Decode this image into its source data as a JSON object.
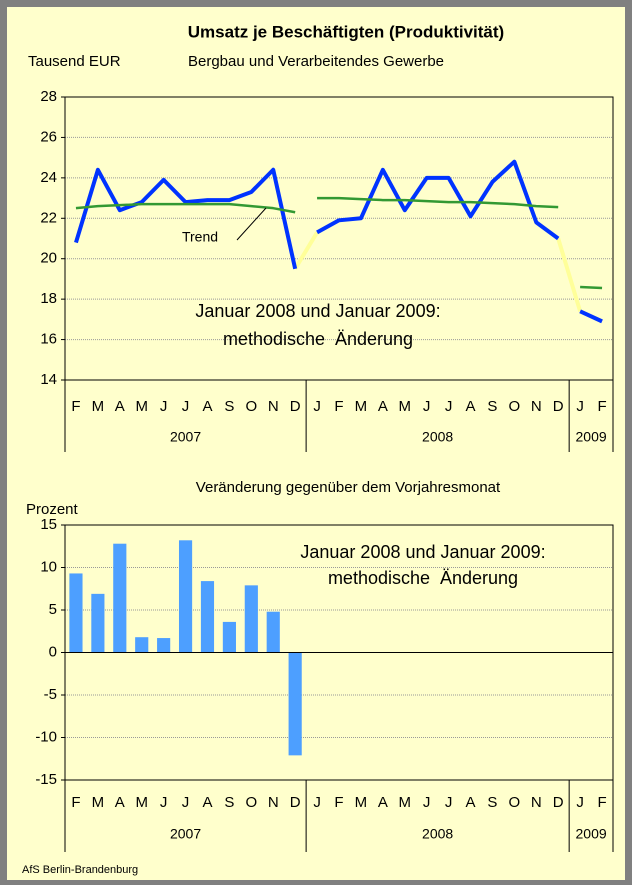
{
  "chart_data": [
    {
      "type": "line",
      "title": "Umsatz je Beschäftigten (Produktivität)",
      "y_label": "Tausend EUR",
      "subtitle": "Bergbau und Verarbeitendes Gewerbe",
      "groups": [
        {
          "label": "2007",
          "categories": [
            "F",
            "M",
            "A",
            "M",
            "J",
            "J",
            "A",
            "S",
            "O",
            "N",
            "D"
          ]
        },
        {
          "label": "2008",
          "categories": [
            "J",
            "F",
            "M",
            "A",
            "M",
            "J",
            "J",
            "A",
            "S",
            "O",
            "N",
            "D"
          ]
        },
        {
          "label": "2009",
          "categories": [
            "J",
            "F"
          ]
        }
      ],
      "series": [
        {
          "color": "#0033ff",
          "width": 4,
          "values": [
            20.8,
            24.4,
            22.4,
            22.8,
            23.9,
            22.8,
            22.9,
            22.9,
            23.3,
            24.4,
            19.5,
            21.3,
            21.9,
            22.0,
            24.4,
            22.4,
            24.0,
            24.0,
            22.1,
            23.8,
            24.8,
            21.8,
            21.0,
            17.4,
            16.9
          ],
          "group_connector_color": "#ffff99"
        },
        {
          "name": "Trend",
          "color": "#339933",
          "width": 2.5,
          "values": [
            22.5,
            22.6,
            22.65,
            22.7,
            22.7,
            22.7,
            22.7,
            22.7,
            22.6,
            22.5,
            22.3,
            23.0,
            23.0,
            22.95,
            22.9,
            22.9,
            22.85,
            22.8,
            22.8,
            22.75,
            22.7,
            22.6,
            22.55,
            18.6,
            18.55
          ]
        }
      ],
      "annotations": [
        "Januar 2008 und Januar 2009:",
        "methodische  Änderung"
      ],
      "ylim": [
        14,
        28
      ],
      "yticks": [
        14,
        16,
        18,
        20,
        22,
        24,
        26,
        28
      ],
      "grid": true
    },
    {
      "type": "bar",
      "title": "Veränderung gegenüber dem Vorjahresmonat",
      "y_label": "Prozent",
      "groups": [
        {
          "label": "2007",
          "categories": [
            "F",
            "M",
            "A",
            "M",
            "J",
            "J",
            "A",
            "S",
            "O",
            "N",
            "D"
          ]
        },
        {
          "label": "2008",
          "categories": [
            "J",
            "F",
            "M",
            "A",
            "M",
            "J",
            "J",
            "A",
            "S",
            "O",
            "N",
            "D"
          ]
        },
        {
          "label": "2009",
          "categories": [
            "J",
            "F"
          ]
        }
      ],
      "color": "#4d9fff",
      "values": [
        9.3,
        6.9,
        12.8,
        1.8,
        1.7,
        13.2,
        8.4,
        3.6,
        7.9,
        4.8,
        -12.1,
        null,
        null,
        null,
        null,
        null,
        null,
        null,
        null,
        null,
        null,
        null,
        null,
        null,
        null
      ],
      "annotations": [
        "Januar 2008 und Januar 2009:",
        "methodische  Änderung"
      ],
      "ylim": [
        -15,
        15
      ],
      "yticks": [
        -15,
        -10,
        -5,
        0,
        5,
        10,
        15
      ],
      "grid": true
    }
  ],
  "source": "AfS Berlin-Brandenburg"
}
